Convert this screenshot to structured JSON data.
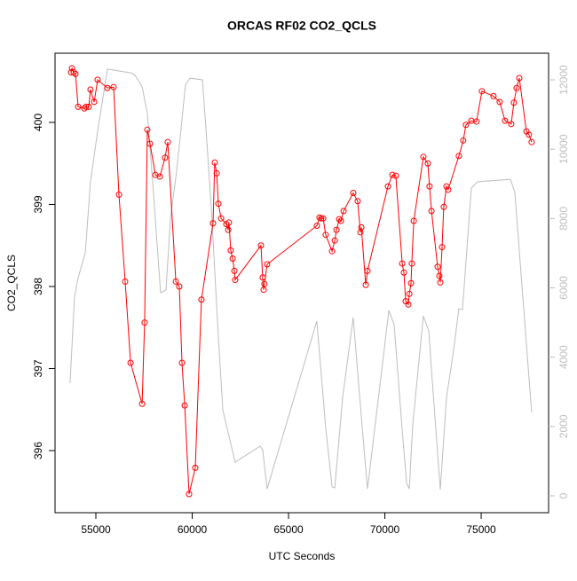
{
  "chart_data": {
    "type": "line",
    "title": "ORCAS RF02 CO2_QCLS",
    "x_label": "UTC Seconds",
    "y_label": "CO2_QCLS",
    "xlim": [
      52880,
      78500
    ],
    "xticks": [
      55000,
      60000,
      65000,
      70000,
      75000
    ],
    "ylim": [
      395.243,
      400.843
    ],
    "yticks": [
      396,
      397,
      398,
      399,
      400
    ],
    "y2lim": [
      -486,
      12768
    ],
    "y2ticks": [
      0,
      2000,
      4000,
      6000,
      8000,
      10000,
      12000
    ],
    "series": [
      {
        "color": "#bebebe",
        "axis": "y2",
        "markers": false,
        "x": [
          53660,
          53890,
          54080,
          54450,
          54720,
          55090,
          55600,
          56840,
          57030,
          57400,
          57670,
          57950,
          58360,
          58640,
          58870,
          59150,
          59420,
          59650,
          59880,
          60530,
          60710,
          60990,
          61360,
          61590,
          62230,
          63520,
          63660,
          63890,
          66470,
          66930,
          67260,
          67400,
          67810,
          68360,
          68820,
          69100,
          70210,
          70480,
          70900,
          71130,
          71270,
          71450,
          72000,
          72280,
          72460,
          72880,
          73200,
          73570,
          73840,
          74030,
          74490,
          74810,
          76520,
          76750,
          77250,
          77620
        ],
        "values": [
          3250,
          5730,
          6290,
          7010,
          9060,
          10520,
          12310,
          12200,
          12130,
          11800,
          11030,
          9060,
          5860,
          5940,
          8010,
          9190,
          10570,
          11850,
          12050,
          12000,
          10640,
          8320,
          4580,
          2480,
          970,
          1430,
          1330,
          200,
          5040,
          1970,
          260,
          230,
          2840,
          5140,
          2020,
          200,
          5350,
          4940,
          1890,
          360,
          200,
          2070,
          5190,
          4760,
          3350,
          180,
          2840,
          4200,
          5400,
          5370,
          8880,
          9060,
          9130,
          8750,
          5090,
          2410
        ]
      },
      {
        "color": "#ff0000",
        "markers": true,
        "x": [
          53710,
          53760,
          53850,
          53940,
          54080,
          54400,
          54490,
          54630,
          54720,
          54910,
          55090,
          55600,
          55920,
          56200,
          56520,
          56800,
          57400,
          57530,
          57670,
          57810,
          58090,
          58320,
          58590,
          58730,
          59150,
          59330,
          59470,
          59610,
          59840,
          60160,
          60480,
          61080,
          61170,
          61270,
          61360,
          61500,
          61770,
          61870,
          61910,
          62000,
          62100,
          62190,
          62230,
          63570,
          63660,
          63710,
          63750,
          63890,
          66470,
          66610,
          66700,
          66800,
          66930,
          67260,
          67400,
          67490,
          67630,
          67720,
          67860,
          68360,
          68590,
          68730,
          68780,
          69010,
          69100,
          70160,
          70390,
          70570,
          70900,
          70990,
          71080,
          71220,
          71270,
          71360,
          71400,
          71500,
          72000,
          72230,
          72320,
          72420,
          72740,
          72830,
          72880,
          72970,
          73060,
          73200,
          73290,
          73840,
          74070,
          74210,
          74490,
          74760,
          75040,
          75640,
          75960,
          76240,
          76560,
          76700,
          76840,
          76980,
          77350,
          77480,
          77620
        ],
        "values": [
          400.61,
          400.66,
          400.61,
          400.59,
          400.19,
          400.17,
          400.19,
          400.19,
          400.4,
          400.25,
          400.52,
          400.42,
          400.43,
          399.12,
          398.06,
          397.07,
          396.57,
          397.56,
          399.91,
          399.74,
          399.36,
          399.34,
          399.57,
          399.76,
          398.06,
          398.0,
          397.07,
          396.55,
          395.47,
          395.79,
          397.84,
          398.77,
          399.51,
          399.38,
          399.01,
          398.83,
          398.76,
          398.69,
          398.78,
          398.44,
          398.34,
          398.19,
          398.08,
          398.5,
          398.11,
          397.96,
          398.03,
          398.27,
          398.74,
          398.84,
          398.83,
          398.83,
          398.63,
          398.43,
          398.56,
          398.69,
          398.82,
          398.8,
          398.92,
          399.14,
          399.04,
          398.66,
          398.72,
          398.02,
          398.19,
          399.22,
          399.36,
          399.35,
          398.28,
          398.17,
          397.82,
          397.78,
          397.91,
          398.04,
          398.28,
          398.8,
          399.58,
          399.5,
          399.22,
          398.92,
          398.24,
          398.13,
          398.05,
          398.48,
          398.97,
          399.22,
          399.18,
          399.59,
          399.78,
          399.97,
          400.02,
          400.01,
          400.38,
          400.32,
          400.25,
          400.02,
          399.98,
          400.24,
          400.42,
          400.54,
          399.89,
          399.85,
          399.76
        ]
      }
    ]
  }
}
